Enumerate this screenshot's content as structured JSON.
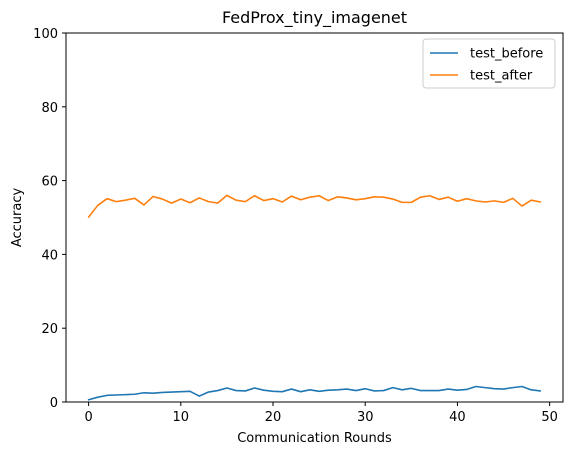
{
  "chart_data": {
    "type": "line",
    "title": "FedProx_tiny_imagenet",
    "xlabel": "Communication Rounds",
    "ylabel": "Accuracy",
    "xlim": [
      -2.45,
      51.45
    ],
    "ylim": [
      0,
      100
    ],
    "xticks": [
      0,
      10,
      20,
      30,
      40,
      50
    ],
    "yticks": [
      0,
      20,
      40,
      60,
      80,
      100
    ],
    "grid": false,
    "legend_position": "top-right",
    "x": [
      0,
      1,
      2,
      3,
      4,
      5,
      6,
      7,
      8,
      9,
      10,
      11,
      12,
      13,
      14,
      15,
      16,
      17,
      18,
      19,
      20,
      21,
      22,
      23,
      24,
      25,
      26,
      27,
      28,
      29,
      30,
      31,
      32,
      33,
      34,
      35,
      36,
      37,
      38,
      39,
      40,
      41,
      42,
      43,
      44,
      45,
      46,
      47,
      48,
      49
    ],
    "series": [
      {
        "name": "test_before",
        "color": "#1f77b4",
        "values": [
          0.6,
          1.3,
          1.8,
          1.9,
          2.0,
          2.1,
          2.5,
          2.4,
          2.6,
          2.7,
          2.8,
          2.9,
          1.6,
          2.7,
          3.1,
          3.8,
          3.1,
          3.0,
          3.8,
          3.2,
          2.9,
          2.8,
          3.5,
          2.8,
          3.3,
          2.9,
          3.2,
          3.3,
          3.5,
          3.1,
          3.6,
          3.0,
          3.1,
          3.9,
          3.3,
          3.7,
          3.1,
          3.1,
          3.1,
          3.5,
          3.2,
          3.4,
          4.2,
          3.9,
          3.6,
          3.5,
          3.9,
          4.2,
          3.3,
          3.0
        ]
      },
      {
        "name": "test_after",
        "color": "#ff7f0e",
        "values": [
          50.1,
          53.3,
          55.1,
          54.3,
          54.7,
          55.2,
          53.4,
          55.7,
          55.0,
          53.9,
          55.0,
          54.0,
          55.3,
          54.3,
          53.9,
          56.0,
          54.7,
          54.3,
          55.9,
          54.6,
          55.1,
          54.2,
          55.8,
          54.8,
          55.5,
          55.9,
          54.6,
          55.6,
          55.3,
          54.8,
          55.1,
          55.6,
          55.5,
          55.0,
          54.1,
          54.1,
          55.5,
          55.9,
          54.9,
          55.5,
          54.4,
          55.1,
          54.5,
          54.2,
          54.5,
          54.1,
          55.2,
          53.1,
          54.7,
          54.2
        ]
      }
    ]
  }
}
